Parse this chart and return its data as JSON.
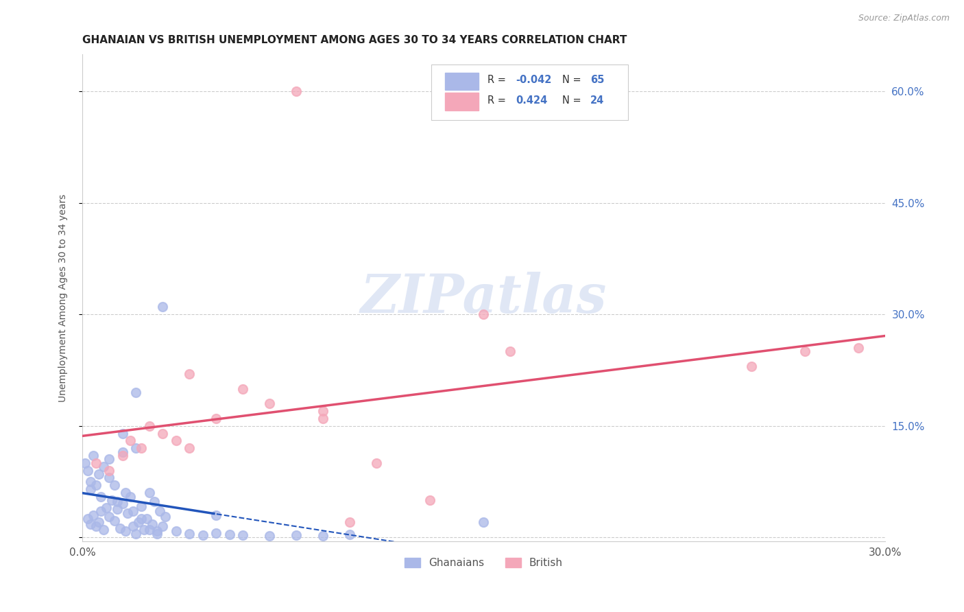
{
  "title": "GHANAIAN VS BRITISH UNEMPLOYMENT AMONG AGES 30 TO 34 YEARS CORRELATION CHART",
  "source": "Source: ZipAtlas.com",
  "ylabel": "Unemployment Among Ages 30 to 34 years",
  "xlim": [
    0,
    0.3
  ],
  "ylim": [
    -0.005,
    0.65
  ],
  "ghanaians_R": -0.042,
  "ghanaians_N": 65,
  "british_R": 0.424,
  "british_N": 24,
  "ghanaian_color": "#aab8e8",
  "british_color": "#f4a7b9",
  "ghanaian_line_color": "#2255bb",
  "british_line_color": "#e05070",
  "background_color": "#ffffff",
  "grid_color": "#cccccc",
  "ghanaians_x": [
    0.002,
    0.003,
    0.004,
    0.005,
    0.006,
    0.007,
    0.008,
    0.009,
    0.01,
    0.011,
    0.012,
    0.013,
    0.014,
    0.015,
    0.016,
    0.017,
    0.018,
    0.019,
    0.02,
    0.021,
    0.022,
    0.023,
    0.024,
    0.025,
    0.026,
    0.027,
    0.028,
    0.029,
    0.03,
    0.031,
    0.003,
    0.005,
    0.007,
    0.01,
    0.013,
    0.016,
    0.019,
    0.022,
    0.025,
    0.028,
    0.001,
    0.002,
    0.003,
    0.004,
    0.006,
    0.008,
    0.01,
    0.012,
    0.015,
    0.02,
    0.035,
    0.04,
    0.045,
    0.05,
    0.055,
    0.06,
    0.07,
    0.08,
    0.09,
    0.1,
    0.02,
    0.03,
    0.05,
    0.015,
    0.15
  ],
  "ghanaians_y": [
    0.025,
    0.018,
    0.03,
    0.015,
    0.02,
    0.035,
    0.01,
    0.04,
    0.028,
    0.05,
    0.022,
    0.038,
    0.012,
    0.045,
    0.008,
    0.032,
    0.055,
    0.015,
    0.005,
    0.02,
    0.042,
    0.01,
    0.025,
    0.06,
    0.018,
    0.048,
    0.008,
    0.035,
    0.015,
    0.028,
    0.065,
    0.07,
    0.055,
    0.08,
    0.048,
    0.06,
    0.035,
    0.025,
    0.01,
    0.005,
    0.1,
    0.09,
    0.075,
    0.11,
    0.085,
    0.095,
    0.105,
    0.07,
    0.115,
    0.12,
    0.008,
    0.005,
    0.003,
    0.006,
    0.004,
    0.003,
    0.002,
    0.003,
    0.002,
    0.004,
    0.195,
    0.31,
    0.03,
    0.14,
    0.02
  ],
  "british_x": [
    0.005,
    0.01,
    0.015,
    0.018,
    0.022,
    0.025,
    0.03,
    0.035,
    0.04,
    0.05,
    0.06,
    0.07,
    0.08,
    0.09,
    0.1,
    0.11,
    0.13,
    0.15,
    0.16,
    0.09,
    0.04,
    0.25,
    0.27,
    0.29
  ],
  "british_y": [
    0.1,
    0.09,
    0.11,
    0.13,
    0.12,
    0.15,
    0.14,
    0.13,
    0.12,
    0.16,
    0.2,
    0.18,
    0.6,
    0.16,
    0.02,
    0.1,
    0.05,
    0.3,
    0.25,
    0.17,
    0.22,
    0.23,
    0.25,
    0.255
  ]
}
